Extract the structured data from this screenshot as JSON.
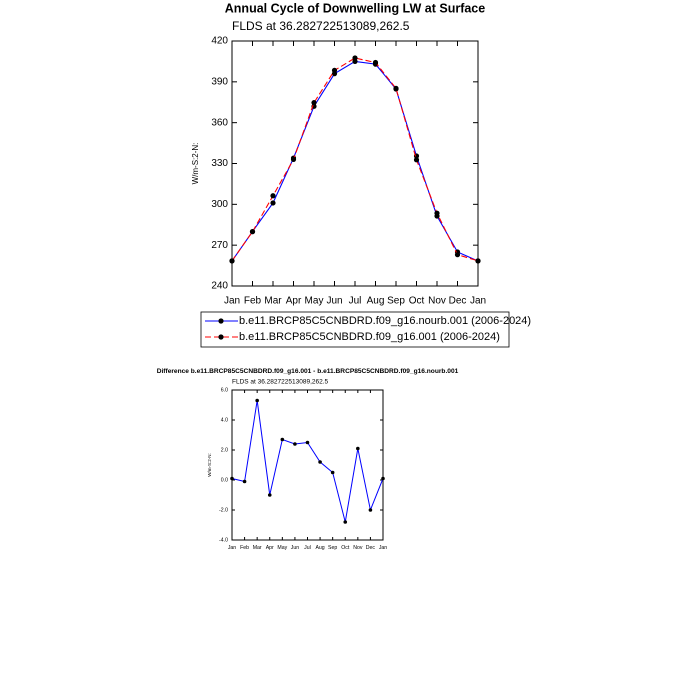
{
  "chart_data": [
    {
      "type": "line",
      "title": "Annual Cycle of Downwelling LW at Surface",
      "subtitle": "FLDS at 36.282722513089,262.5",
      "y_label": "W/m-S:2-N:",
      "categories": [
        "Jan",
        "Feb",
        "Mar",
        "Apr",
        "May",
        "Jun",
        "Jul",
        "Aug",
        "Sep",
        "Oct",
        "Nov",
        "Dec",
        "Jan"
      ],
      "series": [
        {
          "name": "b.e11.BRCP85C5CNBDRD.f09_g16.nourb.001 (2006-2024)",
          "color": "#0000ff",
          "line_style": "solid",
          "marker_color": "#000000",
          "values": [
            258.4,
            280,
            301,
            334,
            372,
            396,
            405,
            403,
            384.7,
            335.5,
            291.4,
            265,
            258.4
          ]
        },
        {
          "name": "b.e11.BRCP85C5CNBDRD.f09_g16.001 (2006-2024)",
          "color": "#ff0000",
          "line_style": "dashed",
          "marker_color": "#000000",
          "values": [
            258.5,
            279.9,
            306.3,
            333,
            374.7,
            398.4,
            407.5,
            404.2,
            385.2,
            332.7,
            293.5,
            263,
            258.5
          ]
        }
      ],
      "ylim": [
        240,
        420
      ],
      "yticks": [
        240,
        270,
        300,
        330,
        360,
        390,
        420
      ],
      "legend": "bottom"
    },
    {
      "type": "line",
      "title": "Difference b.e11.BRCP85C5CNBDRD.f09_g16.001 - b.e11.BRCP85C5CNBDRD.f09_g16.nourb.001",
      "subtitle": "FLDS at 36.282722513089,262.5",
      "y_label": "W/m-S:2-N:",
      "categories": [
        "Jan",
        "Feb",
        "Mar",
        "Apr",
        "May",
        "Jun",
        "Jul",
        "Aug",
        "Sep",
        "Oct",
        "Nov",
        "Dec",
        "Jan"
      ],
      "series": [
        {
          "color": "#0000ff",
          "line_style": "solid",
          "marker_color": "#000000",
          "values": [
            0.1,
            -0.1,
            5.3,
            -1.0,
            2.7,
            2.4,
            2.5,
            1.2,
            0.5,
            -2.8,
            2.1,
            -2.0,
            0.1
          ]
        }
      ],
      "ylim": [
        -4,
        6
      ],
      "yticks": [
        {
          "value": -4,
          "label": "-4.0"
        },
        {
          "value": -2,
          "label": "-2.0"
        },
        {
          "value": 0,
          "label": "0.0"
        },
        {
          "value": 2,
          "label": "2.0"
        },
        {
          "value": 4,
          "label": "4.0"
        },
        {
          "value": 6,
          "label": "6.0"
        }
      ]
    }
  ]
}
